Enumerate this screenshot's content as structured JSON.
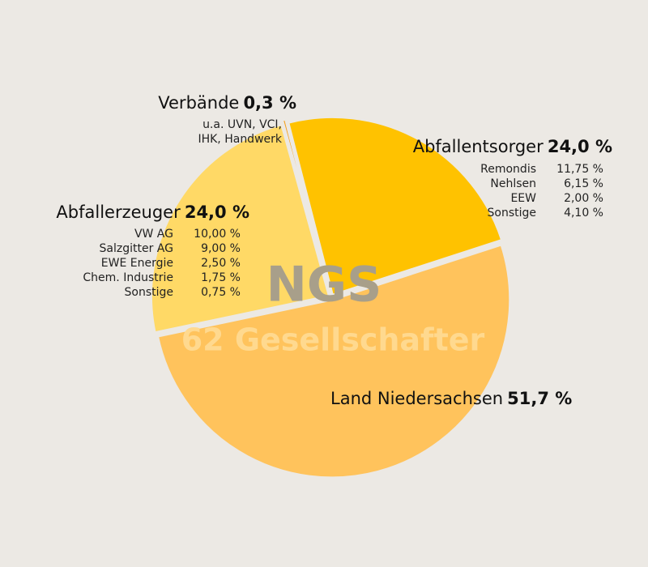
{
  "chart_data": {
    "type": "pie",
    "categories": [
      "Land Niedersachsen",
      "Abfallerzeuger",
      "Verbände",
      "Abfallentsorger"
    ],
    "values": [
      51.7,
      24.0,
      0.3,
      24.0
    ],
    "value_labels": [
      "51,7 %",
      "24,0 %",
      "0,3 %",
      "24,0 %"
    ],
    "colors": [
      "#ffc35c",
      "#ffd966",
      "#f5a01a",
      "#ffc200"
    ],
    "annotations": [
      "NGS",
      "62 Gesellschafter"
    ],
    "breakdowns": [
      null,
      {
        "names": [
          "VW AG",
          "Salzgitter AG",
          "EWE Energie",
          "Chem. Industrie",
          "Sonstige"
        ],
        "values": [
          10.0,
          9.0,
          2.5,
          1.75,
          0.75
        ],
        "value_labels": [
          "10,00 %",
          "9,00 %",
          "2,50 %",
          "1,75 %",
          "0,75 %"
        ]
      },
      {
        "lines": [
          "u.a. UVN, VCI,",
          "IHK, Handwerk"
        ]
      },
      {
        "names": [
          "Remondis",
          "Nehlsen",
          "EEW",
          "Sonstige"
        ],
        "values": [
          11.75,
          6.15,
          2.0,
          4.1
        ],
        "value_labels": [
          "11,75 %",
          "6,15 %",
          "2,00 %",
          "4,10 %"
        ]
      }
    ]
  }
}
